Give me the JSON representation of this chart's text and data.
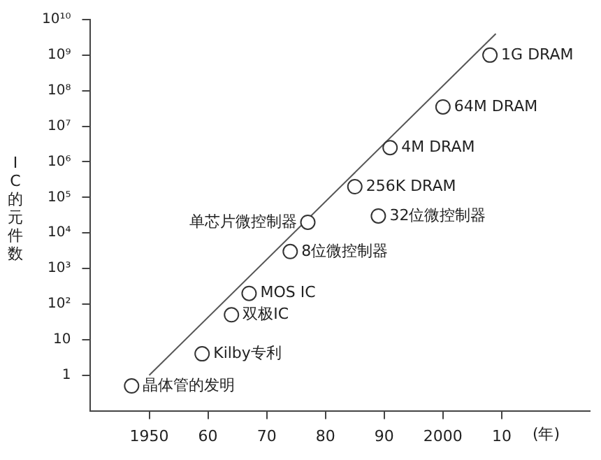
{
  "chart_data": {
    "type": "scatter",
    "ylabel": "IC的元件数",
    "xlabel": "(年)",
    "xlim": [
      1940,
      2025
    ],
    "xticks": [
      1950,
      {
        "value": 1960,
        "label": "60"
      },
      {
        "value": 1970,
        "label": "70"
      },
      {
        "value": 1980,
        "label": "80"
      },
      {
        "value": 1990,
        "label": "90"
      },
      2000,
      {
        "value": 2010,
        "label": "10"
      }
    ],
    "ylim": [
      0.1,
      10000000000
    ],
    "log": true,
    "yticks": [
      1,
      10,
      {
        "value": 100,
        "label": "10²"
      },
      {
        "value": 1000,
        "label": "10³"
      },
      {
        "value": 10000,
        "label": "10⁴"
      },
      {
        "value": 100000,
        "label": "10⁵"
      },
      {
        "value": 1000000,
        "label": "10⁶"
      },
      {
        "value": 10000000,
        "label": "10⁷"
      },
      {
        "value": 100000000,
        "label": "10⁸"
      },
      {
        "value": 1000000000,
        "label": "10⁹"
      },
      {
        "value": 10000000000,
        "label": "10¹⁰"
      }
    ],
    "grid": false,
    "legend": false,
    "marker": "circle",
    "series": [
      {
        "type": "scatter",
        "color": "#333333",
        "x": [
          1947,
          1959,
          1964,
          1967,
          1974,
          1977,
          1989,
          1985,
          1991,
          2000,
          2008
        ],
        "values": [
          0.5,
          4,
          50,
          200,
          3000,
          20000,
          30000,
          200000,
          2500000,
          35000000,
          1000000000
        ]
      },
      {
        "type": "line",
        "color": "#555555",
        "marker": "none",
        "x": [
          1950,
          2009
        ],
        "values": [
          1,
          4000000000
        ]
      }
    ],
    "annotations": [
      {
        "text": "晶体管的发明",
        "x": 1947,
        "y": 0.5
      },
      {
        "text": "Kilby专利",
        "x": 1959,
        "y": 4
      },
      {
        "text": "双极IC",
        "x": 1964,
        "y": 50
      },
      {
        "text": "MOS IC",
        "x": 1967,
        "y": 200
      },
      {
        "text": "8位微控制器",
        "x": 1974,
        "y": 3000
      },
      {
        "text": "单芯片微控制器",
        "x": 1977,
        "y": 20000
      },
      {
        "text": "32位微控制器",
        "x": 1989,
        "y": 30000
      },
      {
        "text": "256K DRAM",
        "x": 1985,
        "y": 200000
      },
      {
        "text": "4M DRAM",
        "x": 1991,
        "y": 2500000
      },
      {
        "text": "64M DRAM",
        "x": 2000,
        "y": 35000000
      },
      {
        "text": "1G DRAM",
        "x": 2008,
        "y": 1000000000
      }
    ]
  }
}
